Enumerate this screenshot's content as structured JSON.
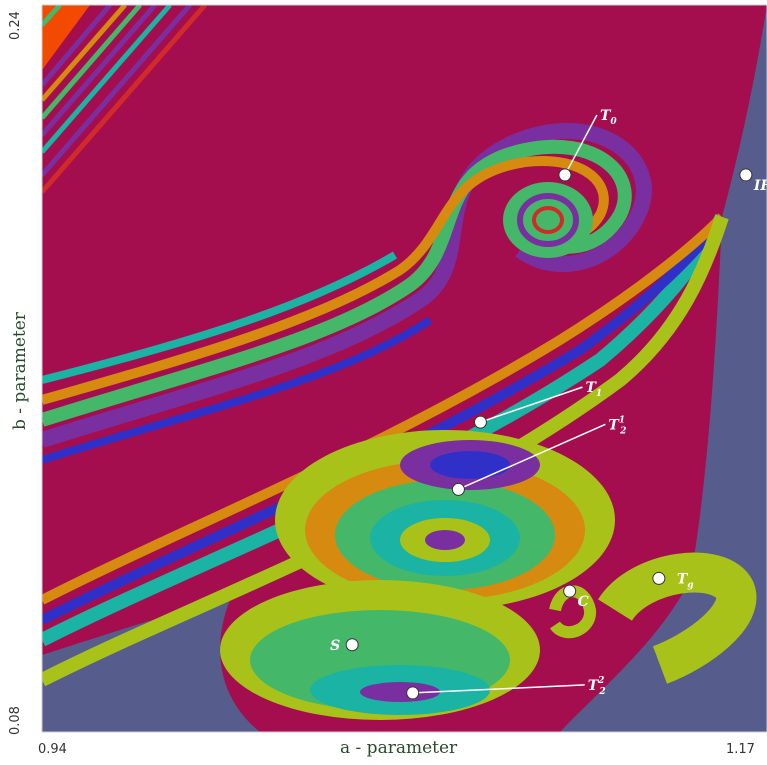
{
  "chart_data": {
    "type": "heatmap",
    "title": "",
    "xlabel": "a - parameter",
    "ylabel": "b - parameter",
    "xlim": [
      0.94,
      1.17
    ],
    "ylim": [
      0.08,
      0.24
    ],
    "x_tick_labels": [
      "0.94",
      "1.17"
    ],
    "y_tick_labels": [
      "0.24",
      "0.08"
    ],
    "grid": false,
    "colors": {
      "background": "#a50e4e",
      "region_blue": "#565d8c",
      "region_orange": "#f24b00",
      "band_green": "#44b868",
      "band_purple": "#7a2fa0",
      "band_teal": "#1bb3a3",
      "band_yellow": "#a9c21a",
      "band_orange": "#d68a10",
      "band_red": "#d12a2a",
      "band_blue": "#3030c8",
      "marker": "#ffffff"
    },
    "points": [
      {
        "label": "T",
        "sub": "0",
        "sup": "",
        "a": 1.1059,
        "b": 0.2026
      },
      {
        "label": "IF",
        "sub": "2",
        "sup": "",
        "a": 1.1633,
        "b": 0.2026
      },
      {
        "label": "T",
        "sub": "1",
        "sup": "",
        "a": 1.0791,
        "b": 0.1482
      },
      {
        "label": "T",
        "sub": "2",
        "sup": "1",
        "a": 1.0721,
        "b": 0.1334
      },
      {
        "label": "T",
        "sub": "g",
        "sup": "",
        "a": 1.1357,
        "b": 0.1138
      },
      {
        "label": "C",
        "sub": "",
        "sup": "",
        "a": 1.1074,
        "b": 0.111
      },
      {
        "label": "S",
        "sub": "",
        "sup": "",
        "a": 1.0384,
        "b": 0.0992
      },
      {
        "label": "T",
        "sub": "2",
        "sup": "2",
        "a": 1.0576,
        "b": 0.0886
      }
    ]
  }
}
